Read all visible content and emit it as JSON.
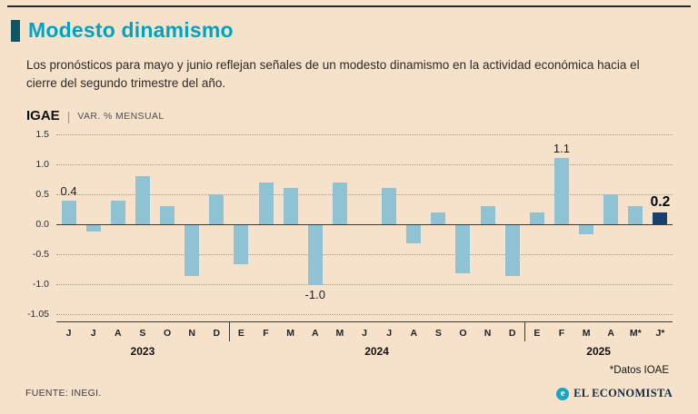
{
  "header": {
    "title": "Modesto dinamismo",
    "subtitle": "Los pronósticos para mayo y junio reflejan señales de un modesto dinamismo en la actividad económica hacia el cierre del segundo trimestre del año."
  },
  "kicker": {
    "label": "IGAE",
    "separator": "|",
    "unit": "VAR. % MENSUAL"
  },
  "chart_data": {
    "type": "bar",
    "title": "Modesto dinamismo",
    "ylabel": "VAR. % MENSUAL",
    "categories": [
      "J",
      "J",
      "A",
      "S",
      "O",
      "N",
      "D",
      "E",
      "F",
      "M",
      "A",
      "M",
      "J",
      "J",
      "A",
      "S",
      "O",
      "N",
      "D",
      "E",
      "F",
      "M",
      "A",
      "M*",
      "J*"
    ],
    "values": [
      0.4,
      -0.1,
      0.4,
      0.8,
      0.3,
      -0.85,
      0.5,
      -0.65,
      0.7,
      0.6,
      -1.0,
      0.7,
      0.0,
      0.6,
      -0.3,
      0.2,
      -0.8,
      0.3,
      -0.85,
      0.2,
      1.1,
      -0.15,
      0.5,
      0.3,
      0.2
    ],
    "year_groups": [
      {
        "label": "2023",
        "start": 0,
        "count": 7
      },
      {
        "label": "2024",
        "start": 7,
        "count": 12
      },
      {
        "label": "2025",
        "start": 19,
        "count": 6
      }
    ],
    "y_ticks": [
      "1.5",
      "1.0",
      "0.5",
      "0.0",
      "-0.5",
      "-1.0",
      "-1.05"
    ],
    "zero_tick_index": 3,
    "ylim": [
      -1.5,
      1.5
    ],
    "annotations": [
      {
        "index": 0,
        "label": "0.4",
        "position": "above",
        "bold": false
      },
      {
        "index": 10,
        "label": "-1.0",
        "position": "below",
        "bold": false
      },
      {
        "index": 20,
        "label": "1.1",
        "position": "above",
        "bold": false
      },
      {
        "index": 24,
        "label": "0.2",
        "position": "above",
        "bold": true
      }
    ],
    "bar_color": "#8fc3d3",
    "highlight_color": "#16406e",
    "highlight_index": 24,
    "grid": "dotted-horizontal",
    "legend": "none"
  },
  "footer": {
    "footnote": "*Datos IOAE",
    "source": "FUENTE: INEGI.",
    "brand": "EL ECONOMISTA",
    "brand_initial": "e"
  },
  "colors": {
    "background": "#f6e2cb",
    "title": "#00a3c4",
    "title_marker": "#0d5666",
    "bar": "#8fc3d3",
    "highlight_bar": "#16406e",
    "rule": "#1d2b35"
  }
}
